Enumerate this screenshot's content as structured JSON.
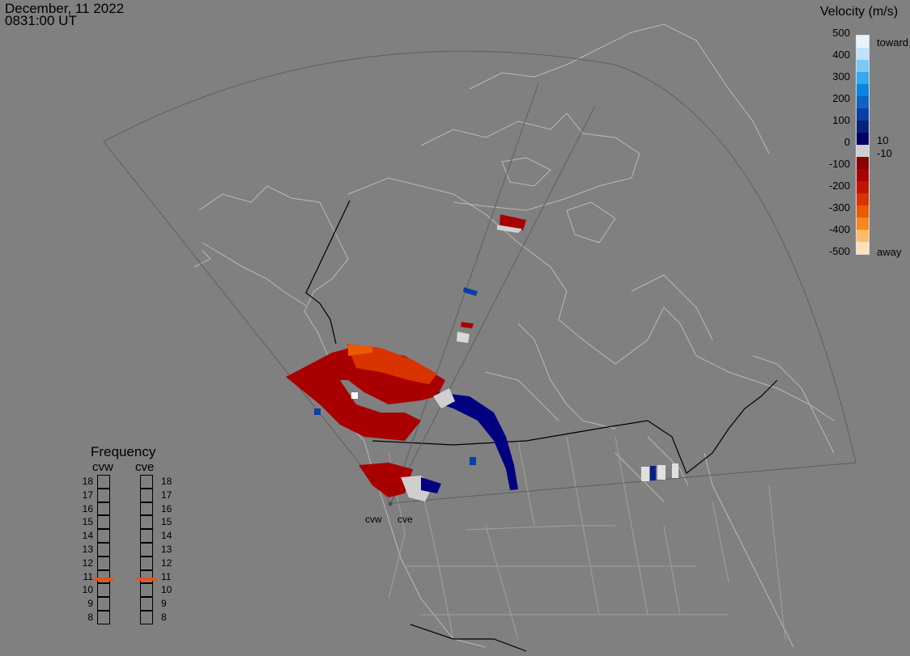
{
  "header": {
    "date": "December, 11 2022",
    "time": "0831:00 UT"
  },
  "colorbar": {
    "title": "Velocity (m/s)",
    "ticks": [
      "500",
      "400",
      "300",
      "200",
      "100",
      "0",
      "-100",
      "-200",
      "-300",
      "-400",
      "-500"
    ],
    "labels": {
      "toward": "toward",
      "away": "away",
      "pos_threshold": "10",
      "neg_threshold": "-10"
    },
    "colors": [
      "#e6f4ff",
      "#bfe3fb",
      "#7ac9f6",
      "#35a8ef",
      "#0a86e0",
      "#0d62c4",
      "#0b3fa3",
      "#062279",
      "#000066",
      "#cfcfcf",
      "#8a0000",
      "#a80000",
      "#c21400",
      "#d93300",
      "#ec5a00",
      "#f7881a",
      "#fdbb6b",
      "#fde1be"
    ]
  },
  "frequency": {
    "title": "Frequency",
    "sites": [
      {
        "name": "cvw",
        "active_mhz": 10.8
      },
      {
        "name": "cve",
        "active_mhz": 10.8
      }
    ],
    "levels": [
      "18",
      "17",
      "16",
      "15",
      "14",
      "13",
      "12",
      "11",
      "10",
      "9",
      "8"
    ],
    "marker_color": "#e8501c"
  },
  "radars": [
    {
      "name": "cvw"
    },
    {
      "name": "cve"
    }
  ]
}
